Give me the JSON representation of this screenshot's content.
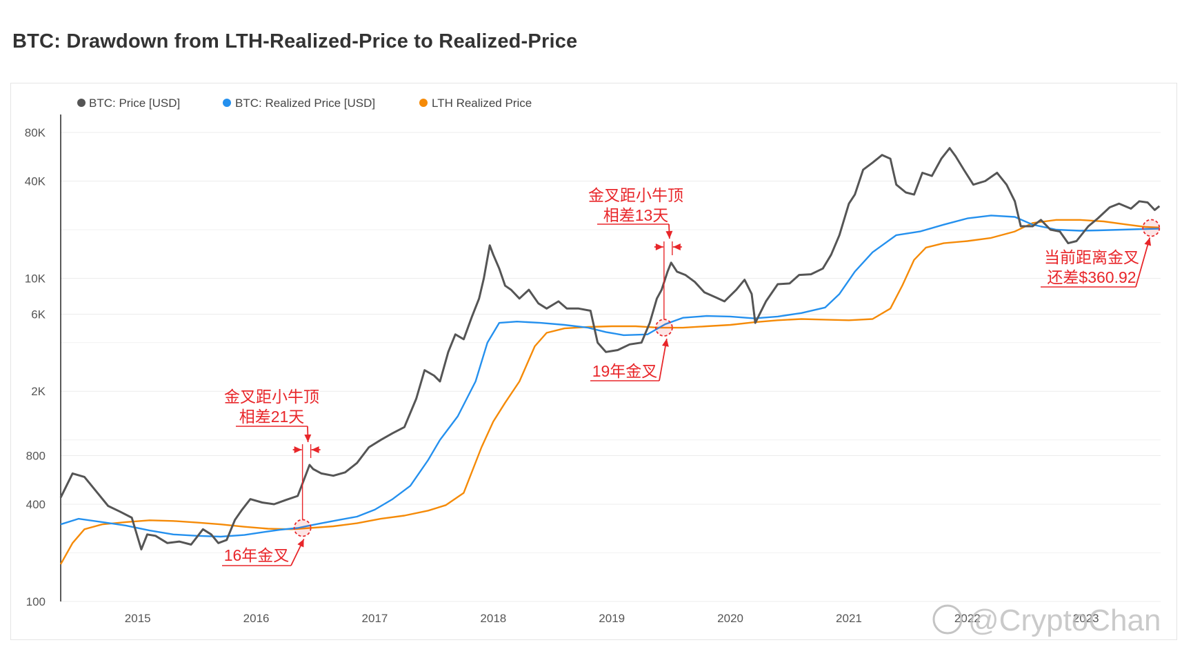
{
  "page": {
    "title": "BTC: Drawdown from LTH-Realized-Price to Realized-Price"
  },
  "chart_data": {
    "type": "line",
    "title": "BTC: Drawdown from LTH-Realized-Price to Realized-Price",
    "y_scale": "log",
    "ylim": [
      100,
      90000
    ],
    "xlim": [
      2014.35,
      2023.63
    ],
    "grid": true,
    "legend_placement": "top-left",
    "y_ticks": [
      {
        "value": 100,
        "label": "100"
      },
      {
        "value": 400,
        "label": "400"
      },
      {
        "value": 800,
        "label": "800"
      },
      {
        "value": 2000,
        "label": "2K"
      },
      {
        "value": 6000,
        "label": "6K"
      },
      {
        "value": 10000,
        "label": "10K"
      },
      {
        "value": 40000,
        "label": "40K"
      },
      {
        "value": 80000,
        "label": "80K"
      }
    ],
    "x_ticks": [
      {
        "value": 2015,
        "label": "2015"
      },
      {
        "value": 2016,
        "label": "2016"
      },
      {
        "value": 2017,
        "label": "2017"
      },
      {
        "value": 2018,
        "label": "2018"
      },
      {
        "value": 2019,
        "label": "2019"
      },
      {
        "value": 2020,
        "label": "2020"
      },
      {
        "value": 2021,
        "label": "2021"
      },
      {
        "value": 2022,
        "label": "2022"
      },
      {
        "value": 2023,
        "label": "2023"
      }
    ],
    "series": [
      {
        "name": "BTC: Price [USD]",
        "color": "#555555",
        "points": [
          [
            2014.35,
            440
          ],
          [
            2014.45,
            620
          ],
          [
            2014.55,
            590
          ],
          [
            2014.65,
            480
          ],
          [
            2014.75,
            390
          ],
          [
            2014.85,
            360
          ],
          [
            2014.95,
            330
          ],
          [
            2015.03,
            210
          ],
          [
            2015.08,
            260
          ],
          [
            2015.15,
            255
          ],
          [
            2015.25,
            230
          ],
          [
            2015.35,
            235
          ],
          [
            2015.45,
            225
          ],
          [
            2015.55,
            280
          ],
          [
            2015.62,
            260
          ],
          [
            2015.68,
            230
          ],
          [
            2015.75,
            240
          ],
          [
            2015.82,
            320
          ],
          [
            2015.88,
            370
          ],
          [
            2015.95,
            430
          ],
          [
            2016.05,
            410
          ],
          [
            2016.15,
            400
          ],
          [
            2016.25,
            425
          ],
          [
            2016.35,
            450
          ],
          [
            2016.4,
            560
          ],
          [
            2016.45,
            700
          ],
          [
            2016.48,
            660
          ],
          [
            2016.55,
            620
          ],
          [
            2016.65,
            600
          ],
          [
            2016.75,
            630
          ],
          [
            2016.85,
            720
          ],
          [
            2016.95,
            900
          ],
          [
            2017.05,
            1000
          ],
          [
            2017.15,
            1100
          ],
          [
            2017.25,
            1200
          ],
          [
            2017.35,
            1800
          ],
          [
            2017.42,
            2700
          ],
          [
            2017.5,
            2500
          ],
          [
            2017.55,
            2300
          ],
          [
            2017.62,
            3500
          ],
          [
            2017.68,
            4500
          ],
          [
            2017.75,
            4200
          ],
          [
            2017.82,
            5800
          ],
          [
            2017.88,
            7500
          ],
          [
            2017.92,
            10000
          ],
          [
            2017.97,
            16000
          ],
          [
            2018.0,
            14000
          ],
          [
            2018.05,
            11500
          ],
          [
            2018.1,
            9000
          ],
          [
            2018.15,
            8500
          ],
          [
            2018.22,
            7500
          ],
          [
            2018.3,
            8500
          ],
          [
            2018.38,
            7000
          ],
          [
            2018.45,
            6500
          ],
          [
            2018.55,
            7200
          ],
          [
            2018.62,
            6500
          ],
          [
            2018.72,
            6500
          ],
          [
            2018.82,
            6300
          ],
          [
            2018.88,
            4000
          ],
          [
            2018.95,
            3500
          ],
          [
            2019.05,
            3600
          ],
          [
            2019.15,
            3900
          ],
          [
            2019.25,
            4000
          ],
          [
            2019.32,
            5300
          ],
          [
            2019.38,
            7500
          ],
          [
            2019.42,
            8500
          ],
          [
            2019.47,
            11000
          ],
          [
            2019.5,
            12500
          ],
          [
            2019.55,
            11000
          ],
          [
            2019.62,
            10500
          ],
          [
            2019.7,
            9500
          ],
          [
            2019.78,
            8200
          ],
          [
            2019.88,
            7600
          ],
          [
            2019.95,
            7200
          ],
          [
            2020.05,
            8500
          ],
          [
            2020.12,
            9800
          ],
          [
            2020.18,
            8000
          ],
          [
            2020.21,
            5300
          ],
          [
            2020.3,
            7200
          ],
          [
            2020.4,
            9200
          ],
          [
            2020.5,
            9300
          ],
          [
            2020.58,
            10500
          ],
          [
            2020.68,
            10600
          ],
          [
            2020.78,
            11500
          ],
          [
            2020.85,
            14000
          ],
          [
            2020.92,
            18500
          ],
          [
            2021.0,
            29000
          ],
          [
            2021.05,
            33000
          ],
          [
            2021.12,
            47000
          ],
          [
            2021.2,
            52000
          ],
          [
            2021.28,
            58000
          ],
          [
            2021.35,
            55000
          ],
          [
            2021.4,
            38000
          ],
          [
            2021.48,
            34000
          ],
          [
            2021.55,
            33000
          ],
          [
            2021.62,
            45000
          ],
          [
            2021.7,
            43000
          ],
          [
            2021.78,
            55000
          ],
          [
            2021.85,
            64000
          ],
          [
            2021.9,
            57000
          ],
          [
            2021.97,
            47000
          ],
          [
            2022.05,
            38000
          ],
          [
            2022.15,
            40000
          ],
          [
            2022.25,
            45000
          ],
          [
            2022.33,
            38000
          ],
          [
            2022.4,
            30000
          ],
          [
            2022.45,
            21000
          ],
          [
            2022.55,
            21000
          ],
          [
            2022.62,
            23000
          ],
          [
            2022.7,
            20000
          ],
          [
            2022.78,
            19500
          ],
          [
            2022.85,
            16500
          ],
          [
            2022.92,
            17000
          ],
          [
            2023.02,
            21000
          ],
          [
            2023.1,
            23500
          ],
          [
            2023.2,
            27500
          ],
          [
            2023.28,
            29000
          ],
          [
            2023.38,
            27000
          ],
          [
            2023.45,
            30000
          ],
          [
            2023.52,
            29500
          ],
          [
            2023.58,
            26500
          ],
          [
            2023.62,
            28000
          ]
        ]
      },
      {
        "name": "BTC: Realized Price [USD]",
        "color": "#2490ee",
        "points": [
          [
            2014.35,
            300
          ],
          [
            2014.5,
            325
          ],
          [
            2014.7,
            310
          ],
          [
            2014.9,
            295
          ],
          [
            2015.1,
            275
          ],
          [
            2015.3,
            260
          ],
          [
            2015.5,
            255
          ],
          [
            2015.7,
            252
          ],
          [
            2015.9,
            258
          ],
          [
            2016.05,
            268
          ],
          [
            2016.2,
            278
          ],
          [
            2016.35,
            285
          ],
          [
            2016.45,
            295
          ],
          [
            2016.55,
            305
          ],
          [
            2016.7,
            320
          ],
          [
            2016.85,
            335
          ],
          [
            2017.0,
            370
          ],
          [
            2017.15,
            430
          ],
          [
            2017.3,
            520
          ],
          [
            2017.45,
            750
          ],
          [
            2017.55,
            1000
          ],
          [
            2017.7,
            1400
          ],
          [
            2017.85,
            2300
          ],
          [
            2017.95,
            4000
          ],
          [
            2018.05,
            5300
          ],
          [
            2018.2,
            5400
          ],
          [
            2018.4,
            5300
          ],
          [
            2018.6,
            5150
          ],
          [
            2018.8,
            4950
          ],
          [
            2018.95,
            4650
          ],
          [
            2019.1,
            4450
          ],
          [
            2019.3,
            4500
          ],
          [
            2019.45,
            5200
          ],
          [
            2019.6,
            5700
          ],
          [
            2019.8,
            5850
          ],
          [
            2020.0,
            5800
          ],
          [
            2020.2,
            5650
          ],
          [
            2020.4,
            5800
          ],
          [
            2020.6,
            6100
          ],
          [
            2020.8,
            6600
          ],
          [
            2020.92,
            8000
          ],
          [
            2021.05,
            11000
          ],
          [
            2021.2,
            14500
          ],
          [
            2021.4,
            18500
          ],
          [
            2021.6,
            19500
          ],
          [
            2021.8,
            21500
          ],
          [
            2022.0,
            23500
          ],
          [
            2022.2,
            24500
          ],
          [
            2022.4,
            24000
          ],
          [
            2022.55,
            21500
          ],
          [
            2022.75,
            20000
          ],
          [
            2022.95,
            19700
          ],
          [
            2023.1,
            19800
          ],
          [
            2023.3,
            20000
          ],
          [
            2023.5,
            20200
          ],
          [
            2023.62,
            20300
          ]
        ]
      },
      {
        "name": "LTH Realized Price",
        "color": "#f58a07",
        "points": [
          [
            2014.35,
            170
          ],
          [
            2014.45,
            230
          ],
          [
            2014.55,
            280
          ],
          [
            2014.7,
            300
          ],
          [
            2014.9,
            310
          ],
          [
            2015.1,
            318
          ],
          [
            2015.3,
            315
          ],
          [
            2015.5,
            308
          ],
          [
            2015.7,
            300
          ],
          [
            2015.9,
            290
          ],
          [
            2016.1,
            282
          ],
          [
            2016.3,
            280
          ],
          [
            2016.45,
            285
          ],
          [
            2016.65,
            292
          ],
          [
            2016.85,
            305
          ],
          [
            2017.05,
            325
          ],
          [
            2017.25,
            340
          ],
          [
            2017.45,
            365
          ],
          [
            2017.6,
            395
          ],
          [
            2017.75,
            470
          ],
          [
            2017.9,
            900
          ],
          [
            2018.0,
            1300
          ],
          [
            2018.1,
            1700
          ],
          [
            2018.22,
            2300
          ],
          [
            2018.35,
            3800
          ],
          [
            2018.45,
            4600
          ],
          [
            2018.6,
            4900
          ],
          [
            2018.8,
            5000
          ],
          [
            2019.0,
            5050
          ],
          [
            2019.2,
            5050
          ],
          [
            2019.4,
            4950
          ],
          [
            2019.6,
            4950
          ],
          [
            2019.8,
            5050
          ],
          [
            2020.0,
            5150
          ],
          [
            2020.2,
            5350
          ],
          [
            2020.4,
            5500
          ],
          [
            2020.6,
            5600
          ],
          [
            2020.8,
            5550
          ],
          [
            2021.0,
            5500
          ],
          [
            2021.2,
            5600
          ],
          [
            2021.35,
            6500
          ],
          [
            2021.45,
            9000
          ],
          [
            2021.55,
            13000
          ],
          [
            2021.65,
            15500
          ],
          [
            2021.8,
            16500
          ],
          [
            2022.0,
            17000
          ],
          [
            2022.2,
            17800
          ],
          [
            2022.4,
            19500
          ],
          [
            2022.55,
            22000
          ],
          [
            2022.75,
            23000
          ],
          [
            2022.95,
            23000
          ],
          [
            2023.15,
            22500
          ],
          [
            2023.35,
            21500
          ],
          [
            2023.5,
            20800
          ],
          [
            2023.62,
            20650
          ]
        ]
      }
    ],
    "annotations": {
      "cross_2016": {
        "label": "16年金叉",
        "x": 2016.39,
        "y": 285
      },
      "peak_2016": {
        "line1": "金叉距小牛顶",
        "line2": "相差21天",
        "x": 2016.39
      },
      "cross_2019": {
        "label": "19年金叉",
        "x": 2019.44,
        "y": 4950
      },
      "peak_2019": {
        "line1": "金叉距小牛顶",
        "line2": "相差13天",
        "x": 2019.44
      },
      "current": {
        "line1": "当前距离金叉",
        "line2": "还差$360.92",
        "x": 2023.62,
        "y": 20500
      }
    }
  },
  "watermark": {
    "text": "@CryptoChan"
  }
}
